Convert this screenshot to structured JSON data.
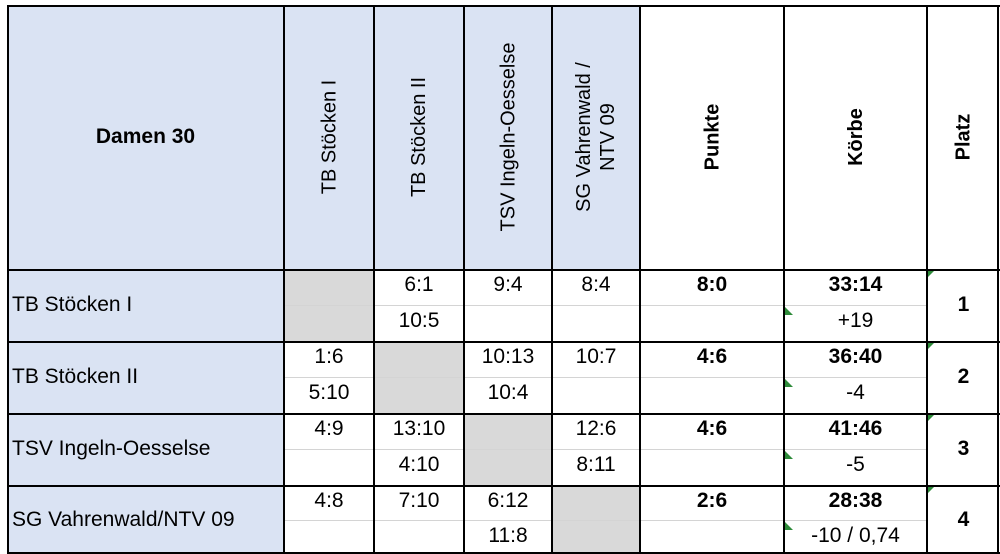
{
  "table": {
    "title": "Damen 30",
    "column_headers": [
      "TB Stöcken I",
      "TB Stöcken II",
      "TSV Ingeln-Oesselse",
      "SG Vahrenwald / NTV 09"
    ],
    "stat_headers": {
      "points": "Punkte",
      "baskets": "Körbe",
      "place": "Platz"
    },
    "rows": [
      {
        "team": "TB Stöcken I",
        "results": [
          null,
          [
            "6:1",
            "10:5"
          ],
          [
            "9:4",
            ""
          ],
          [
            "8:4",
            ""
          ]
        ],
        "points": "8:0",
        "baskets": "33:14",
        "diff": "+19",
        "place": "1"
      },
      {
        "team": "TB Stöcken II",
        "results": [
          [
            "1:6",
            "5:10"
          ],
          null,
          [
            "10:13",
            "10:4"
          ],
          [
            "10:7",
            ""
          ]
        ],
        "points": "4:6",
        "baskets": "36:40",
        "diff": "-4",
        "place": "2"
      },
      {
        "team": "TSV Ingeln-Oesselse",
        "results": [
          [
            "4:9",
            ""
          ],
          [
            "13:10",
            "4:10"
          ],
          null,
          [
            "12:6",
            "8:11"
          ]
        ],
        "points": "4:6",
        "baskets": "41:46",
        "diff": "-5",
        "place": "3"
      },
      {
        "team": "SG Vahrenwald/NTV 09",
        "results": [
          [
            "4:8",
            ""
          ],
          [
            "7:10",
            ""
          ],
          [
            "6:12",
            "11:8"
          ],
          null
        ],
        "points": "2:6",
        "baskets": "28:38",
        "diff": "-10 / 0,74",
        "place": "4"
      }
    ]
  },
  "colors": {
    "header_fill": "#dae3f3",
    "diagonal_fill": "#d9d9d9",
    "comment_marker": "#2e8b3a",
    "border": "#000000"
  }
}
